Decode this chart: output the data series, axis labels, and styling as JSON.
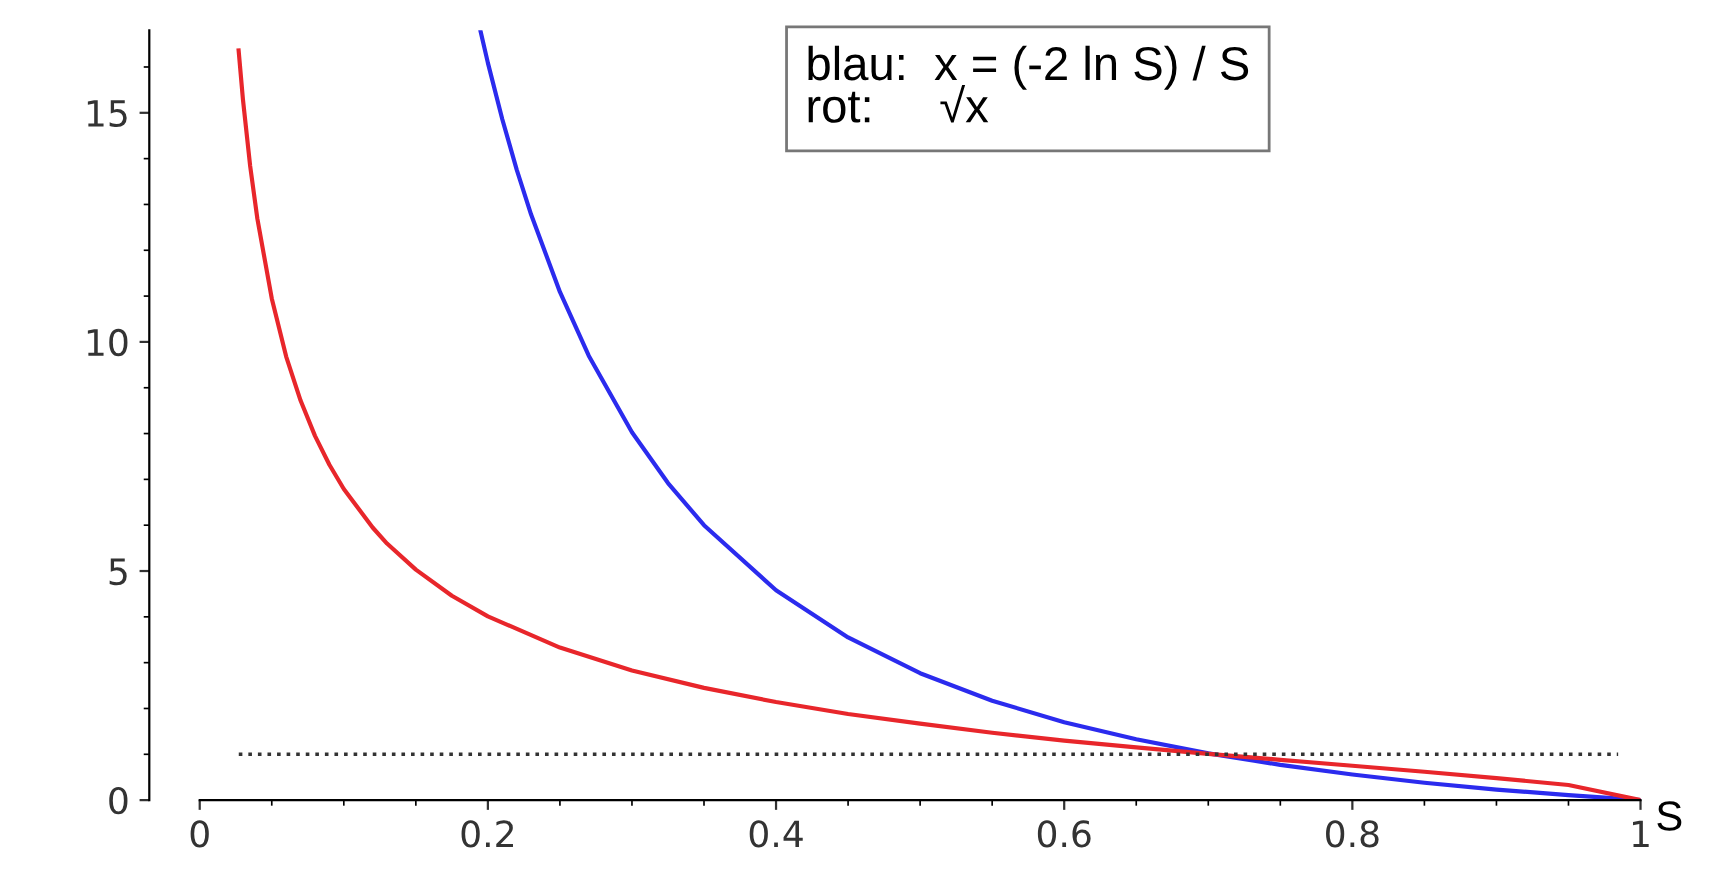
{
  "chart_data": {
    "type": "line",
    "xlabel": "S",
    "series": [
      {
        "color": "#2b2bee",
        "x": [
          0.195,
          0.2,
          0.21,
          0.22,
          0.23,
          0.25,
          0.27,
          0.3,
          0.325,
          0.35,
          0.4,
          0.45,
          0.5,
          0.55,
          0.6,
          0.65,
          0.7,
          0.75,
          0.8,
          0.85,
          0.9,
          0.95,
          1.0
        ],
        "values": [
          16.77,
          16.09,
          14.86,
          13.76,
          12.78,
          11.09,
          9.7,
          8.03,
          6.92,
          6.0,
          4.58,
          3.55,
          2.77,
          2.17,
          1.7,
          1.33,
          1.02,
          0.77,
          0.56,
          0.38,
          0.23,
          0.11,
          0
        ]
      },
      {
        "color": "#e8262b",
        "x": [
          0.027,
          0.03,
          0.035,
          0.04,
          0.05,
          0.06,
          0.07,
          0.08,
          0.09,
          0.1,
          0.12,
          0.13,
          0.15,
          0.175,
          0.2,
          0.25,
          0.3,
          0.35,
          0.4,
          0.45,
          0.5,
          0.55,
          0.6,
          0.65,
          0.7,
          0.75,
          0.8,
          0.85,
          0.9,
          0.95,
          1.0
        ],
        "values": [
          16.36,
          15.29,
          13.84,
          12.69,
          10.95,
          9.68,
          8.72,
          7.95,
          7.32,
          6.79,
          5.95,
          5.6,
          5.03,
          4.46,
          4.01,
          3.33,
          2.83,
          2.45,
          2.14,
          1.88,
          1.67,
          1.47,
          1.3,
          1.15,
          1.01,
          0.88,
          0.75,
          0.62,
          0.48,
          0.33,
          0
        ]
      }
    ],
    "xlim": [
      -0.035,
      1.0
    ],
    "ylim": [
      0,
      16.8
    ],
    "xticks": [
      0,
      {
        "value": 0.2,
        "label": "0.2"
      },
      {
        "value": 0.4,
        "label": "0.4"
      },
      {
        "value": 0.6,
        "label": "0.6"
      },
      {
        "value": 0.8,
        "label": "0.8"
      },
      1
    ],
    "yticks": [
      0,
      5,
      10,
      15
    ],
    "ref_lines": [
      {
        "axis": "y",
        "value": 1,
        "color": "#333333",
        "line_style": "dotted"
      }
    ],
    "annotations": [
      "blau:  x = (-2 ln S) / S\nrot:     √x"
    ],
    "grid": false,
    "legend": false,
    "marker": "none",
    "line_style": "solid"
  }
}
